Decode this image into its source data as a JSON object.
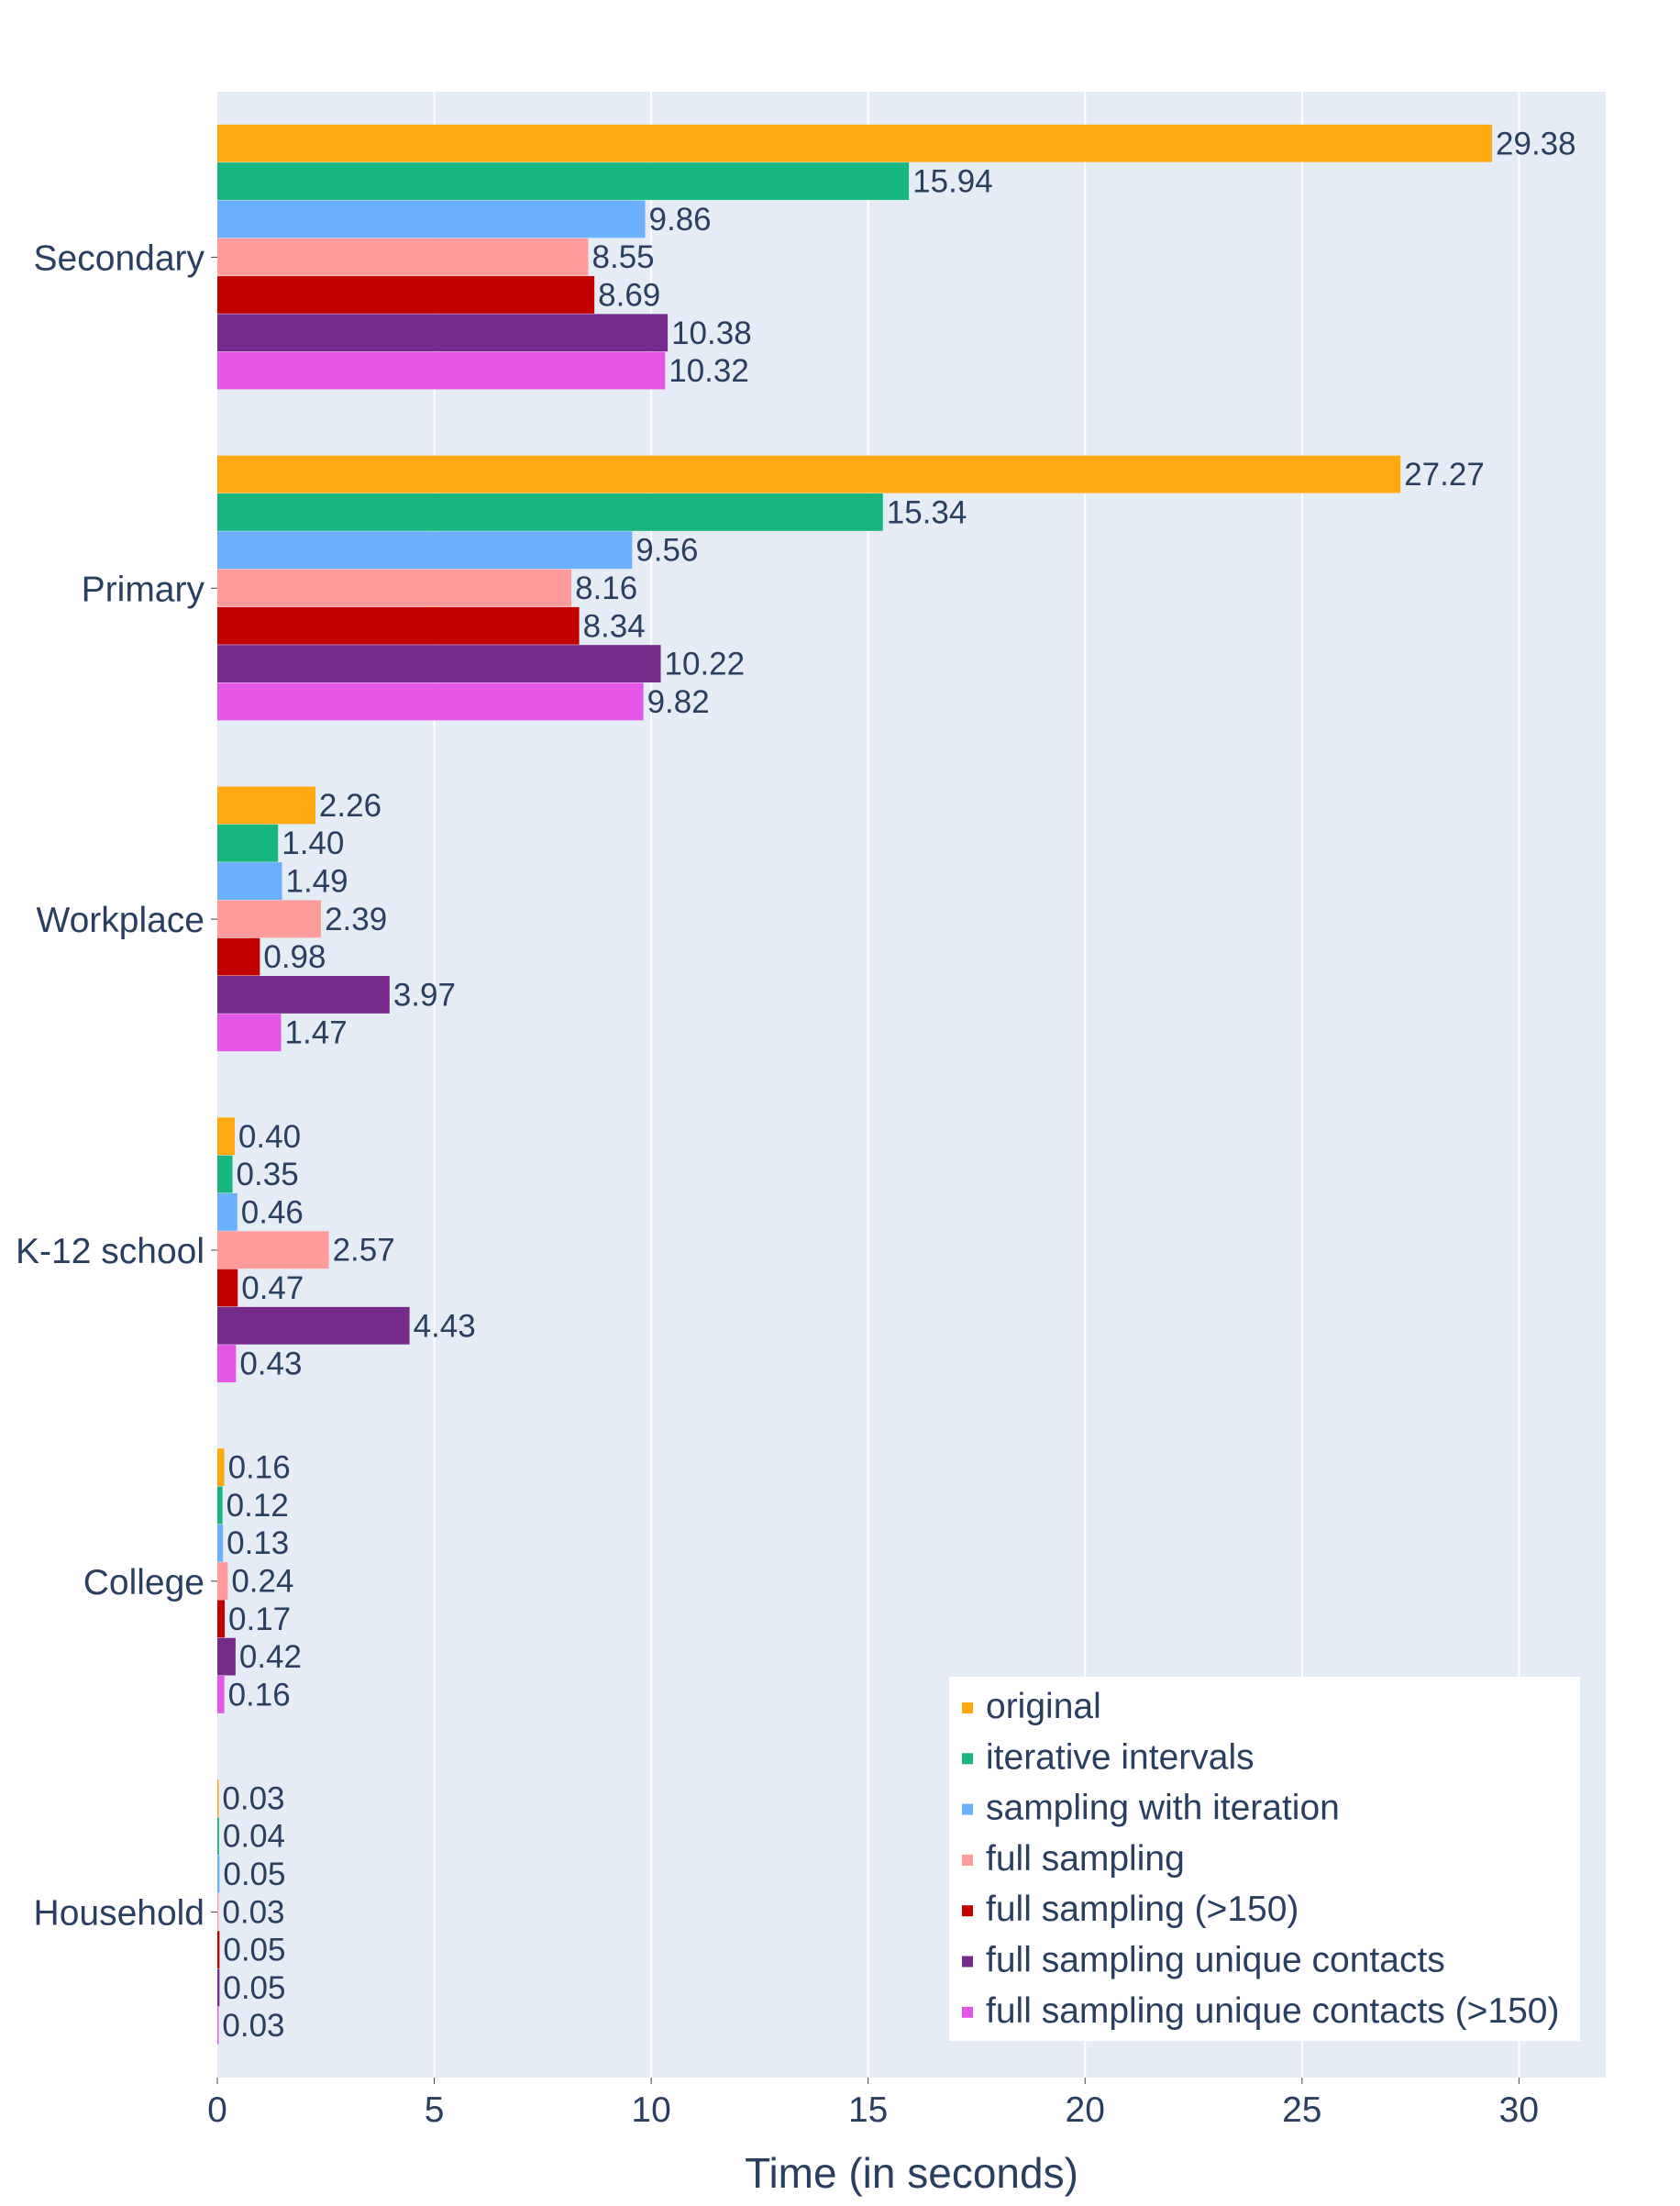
{
  "chart_data": {
    "type": "bar",
    "orientation": "horizontal",
    "title": "",
    "xlabel": "Time (in seconds)",
    "ylabel": "",
    "xlim": [
      0,
      32
    ],
    "xticks": [
      0,
      5,
      10,
      15,
      20,
      25,
      30
    ],
    "grid": true,
    "legend_position": "bottom-right",
    "categories": [
      "Secondary",
      "Primary",
      "Workplace",
      "K-12 school",
      "College",
      "Household"
    ],
    "series": [
      {
        "name": "original",
        "color": "#FFA810",
        "values": [
          29.38,
          27.27,
          2.26,
          0.4,
          0.16,
          0.03
        ],
        "labels": [
          "29.38",
          "27.27",
          "2.26",
          "0.40",
          "0.16",
          "0.03"
        ]
      },
      {
        "name": "iterative intervals",
        "color": "#17B67E",
        "values": [
          15.94,
          15.34,
          1.4,
          0.35,
          0.12,
          0.04
        ],
        "labels": [
          "15.94",
          "15.34",
          "1.40",
          "0.35",
          "0.12",
          "0.04"
        ]
      },
      {
        "name": "sampling with iteration",
        "color": "#6AB0FB",
        "values": [
          9.86,
          9.56,
          1.49,
          0.46,
          0.13,
          0.05
        ],
        "labels": [
          "9.86",
          "9.56",
          "1.49",
          "0.46",
          "0.13",
          "0.05"
        ]
      },
      {
        "name": "full sampling",
        "color": "#FF9B9B",
        "values": [
          8.55,
          8.16,
          2.39,
          2.57,
          0.24,
          0.03
        ],
        "labels": [
          "8.55",
          "8.16",
          "2.39",
          "2.57",
          "0.24",
          "0.03"
        ]
      },
      {
        "name": "full sampling (>150)",
        "color": "#C20000",
        "values": [
          8.69,
          8.34,
          0.98,
          0.47,
          0.17,
          0.05
        ],
        "labels": [
          "8.69",
          "8.34",
          "0.98",
          "0.47",
          "0.17",
          "0.05"
        ]
      },
      {
        "name": "full sampling unique contacts",
        "color": "#762A8C",
        "values": [
          10.38,
          10.22,
          3.97,
          4.43,
          0.42,
          0.05
        ],
        "labels": [
          "10.38",
          "10.22",
          "3.97",
          "4.43",
          "0.42",
          "0.05"
        ]
      },
      {
        "name": "full sampling unique contacts (>150)",
        "color": "#E356E6",
        "values": [
          10.32,
          9.82,
          1.47,
          0.43,
          0.16,
          0.03
        ],
        "labels": [
          "10.32",
          "9.82",
          "1.47",
          "0.43",
          "0.16",
          "0.03"
        ]
      }
    ]
  }
}
